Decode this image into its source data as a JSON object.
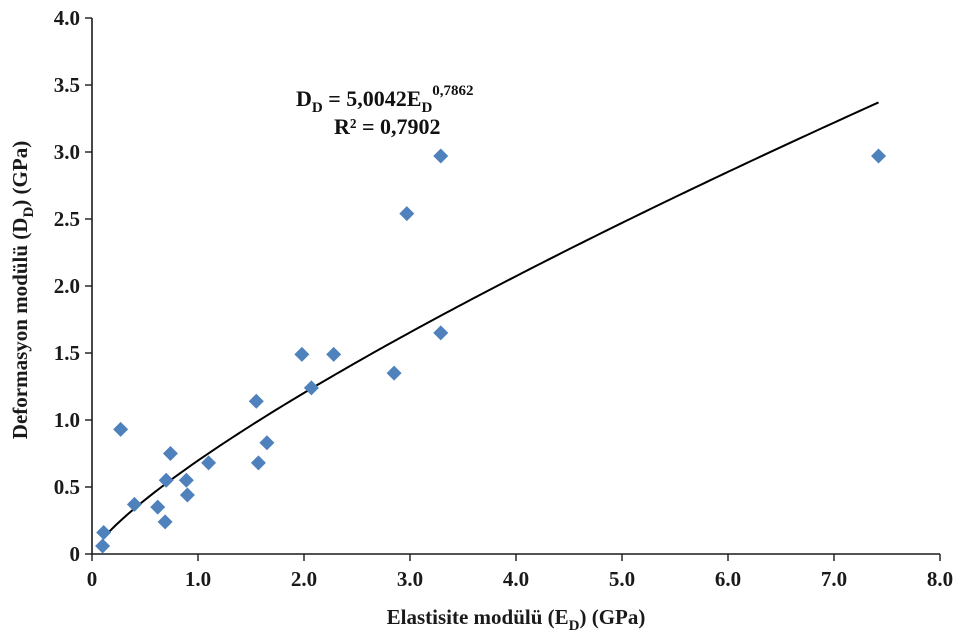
{
  "chart_data": {
    "type": "scatter",
    "xlabel": {
      "main": "Elastisite modülü (E",
      "sub": "D",
      "tail": ") (GPa)"
    },
    "ylabel": {
      "main": "Deformasyon modülü (D",
      "sub": "D",
      "tail": ") (GPa)"
    },
    "xlim": [
      0,
      8
    ],
    "ylim": [
      0,
      4
    ],
    "x_ticks": [
      "0",
      "1.0",
      "2.0",
      "3.0",
      "4.0",
      "5.0",
      "6.0",
      "7.0",
      "8.0"
    ],
    "y_ticks": [
      "0",
      "0.5",
      "1.0",
      "1.5",
      "2.0",
      "2.5",
      "3.0",
      "3.5",
      "4.0"
    ],
    "series": [
      {
        "color": "#4f81bd",
        "marker": "diamond",
        "points": [
          [
            0.1,
            0.06
          ],
          [
            0.11,
            0.16
          ],
          [
            0.27,
            0.93
          ],
          [
            0.4,
            0.37
          ],
          [
            0.62,
            0.35
          ],
          [
            0.69,
            0.24
          ],
          [
            0.7,
            0.55
          ],
          [
            0.74,
            0.75
          ],
          [
            0.89,
            0.55
          ],
          [
            0.9,
            0.44
          ],
          [
            1.1,
            0.68
          ],
          [
            1.55,
            1.14
          ],
          [
            1.57,
            0.68
          ],
          [
            1.65,
            0.83
          ],
          [
            1.98,
            1.49
          ],
          [
            2.07,
            1.24
          ],
          [
            2.28,
            1.49
          ],
          [
            2.85,
            1.35
          ],
          [
            2.97,
            2.54
          ],
          [
            3.29,
            2.97
          ],
          [
            3.29,
            1.65
          ],
          [
            7.42,
            2.97
          ]
        ]
      }
    ],
    "trendline": {
      "type": "power",
      "coefficient": 5.0042,
      "exponent": 0.7862,
      "x_range": [
        0.1,
        7.42
      ],
      "color": "#000000"
    },
    "annotation": {
      "equation": {
        "lhs": "D",
        "lhs_sub": "D",
        "mid": " = 5,0042E",
        "mid_sub": "D",
        "sup": "0,7862"
      },
      "r2": "R² = 0,7902"
    }
  }
}
